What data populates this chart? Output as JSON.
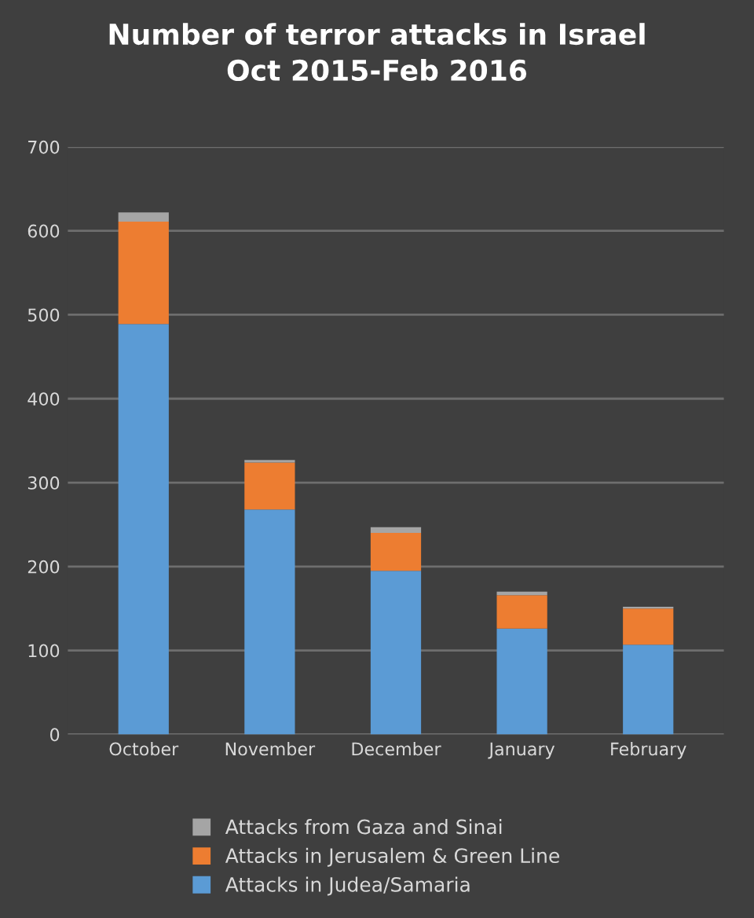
{
  "chart_data": {
    "type": "bar",
    "title": "Number of terror attacks in Israel\nOct 2015-Feb 2016",
    "categories": [
      "October",
      "November",
      "December",
      "January",
      "February"
    ],
    "stacked": true,
    "series": [
      {
        "name": "Attacks in Judea/Samaria",
        "color": "#5b9bd5",
        "values": [
          489,
          268,
          195,
          126,
          107
        ]
      },
      {
        "name": "Attacks in Jerusalem & Green Line",
        "color": "#ed7d31",
        "values": [
          122,
          56,
          45,
          40,
          43
        ]
      },
      {
        "name": "Attacks from Gaza and Sinai",
        "color": "#a5a5a5",
        "values": [
          11,
          3,
          7,
          4,
          2
        ]
      }
    ],
    "ylim": [
      0,
      700
    ],
    "yticks": [
      0,
      100,
      200,
      300,
      400,
      500,
      600,
      700
    ],
    "grid": "y",
    "legend": "bottom"
  }
}
